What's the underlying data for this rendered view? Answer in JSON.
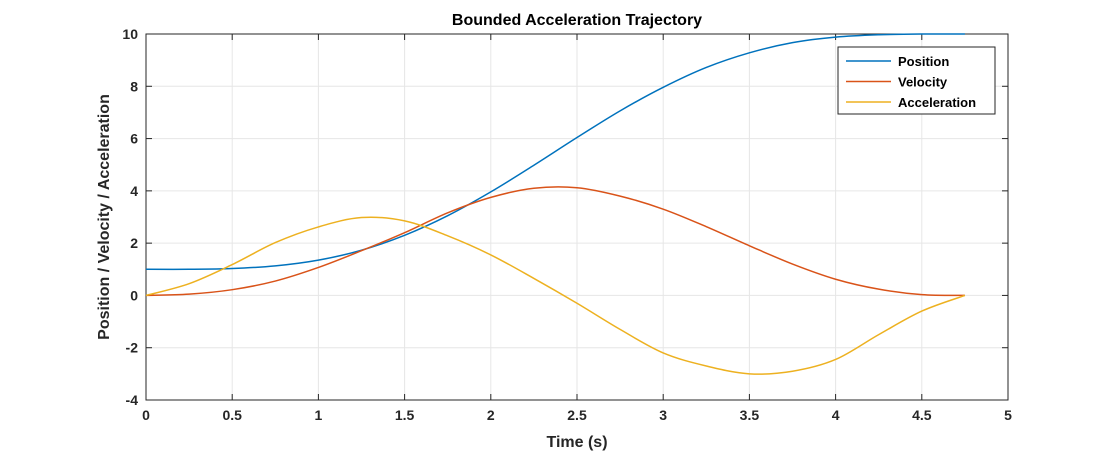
{
  "chart_data": {
    "type": "line",
    "title": "Bounded Acceleration Trajectory",
    "xlabel": "Time (s)",
    "ylabel": "Position / Velocity / Acceleration",
    "xlim": [
      0,
      5
    ],
    "ylim": [
      -4,
      10
    ],
    "xticks": [
      0,
      0.5,
      1,
      1.5,
      2,
      2.5,
      3,
      3.5,
      4,
      4.5,
      5
    ],
    "xtick_labels": [
      "0",
      "0.5",
      "1",
      "1.5",
      "2",
      "2.5",
      "3",
      "3.5",
      "4",
      "4.5",
      "5"
    ],
    "yticks": [
      -4,
      -2,
      0,
      2,
      4,
      6,
      8,
      10
    ],
    "ytick_labels": [
      "-4",
      "-2",
      "0",
      "2",
      "4",
      "6",
      "8",
      "10"
    ],
    "grid": true,
    "legend_position": "top-right",
    "x": [
      0,
      0.25,
      0.5,
      0.75,
      1,
      1.25,
      1.5,
      1.75,
      2,
      2.25,
      2.5,
      2.75,
      3,
      3.25,
      3.5,
      3.75,
      4,
      4.25,
      4.5,
      4.75
    ],
    "series": [
      {
        "name": "Position",
        "color": "#0072BD",
        "values": [
          1.0,
          1.0,
          1.03,
          1.13,
          1.35,
          1.73,
          2.3,
          3.05,
          3.96,
          4.98,
          6.04,
          7.06,
          7.96,
          8.72,
          9.28,
          9.67,
          9.88,
          9.97,
          10.0,
          10.0
        ]
      },
      {
        "name": "Velocity",
        "color": "#D95319",
        "values": [
          0.0,
          0.05,
          0.22,
          0.55,
          1.07,
          1.71,
          2.4,
          3.16,
          3.75,
          4.1,
          4.12,
          3.8,
          3.3,
          2.63,
          1.9,
          1.2,
          0.62,
          0.24,
          0.03,
          0.0
        ]
      },
      {
        "name": "Acceleration",
        "color": "#EDB120",
        "values": [
          0.0,
          0.45,
          1.18,
          2.02,
          2.62,
          2.98,
          2.85,
          2.28,
          1.55,
          0.65,
          -0.3,
          -1.3,
          -2.2,
          -2.7,
          -3.0,
          -2.9,
          -2.45,
          -1.5,
          -0.6,
          0.0
        ]
      }
    ]
  }
}
